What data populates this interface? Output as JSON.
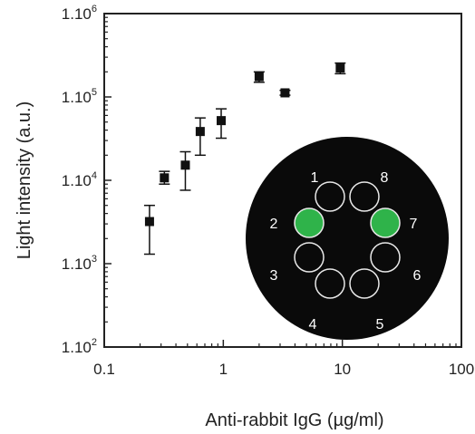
{
  "chart_data": {
    "type": "scatter",
    "xlabel": "Anti-rabbit IgG (µg/ml)",
    "ylabel": "Light intensity (a.u.)",
    "x_scale": "log",
    "y_scale": "log",
    "xlim": [
      0.1,
      100
    ],
    "ylim": [
      100,
      1000000
    ],
    "x_ticks": [
      {
        "value": 0.1,
        "label": "0.1"
      },
      {
        "value": 1,
        "label": "1"
      },
      {
        "value": 10,
        "label": "10"
      },
      {
        "value": 100,
        "label": "100"
      }
    ],
    "y_ticks": [
      {
        "value": 100,
        "base": "1.10",
        "exp": "2"
      },
      {
        "value": 1000,
        "base": "1.10",
        "exp": "3"
      },
      {
        "value": 10000,
        "base": "1.10",
        "exp": "4"
      },
      {
        "value": 100000,
        "base": "1.10",
        "exp": "5"
      },
      {
        "value": 1000000,
        "base": "1.10",
        "exp": "6"
      }
    ],
    "points": [
      {
        "x": 0.24,
        "y": 3200,
        "err_low": 1300,
        "err_high": 5000
      },
      {
        "x": 0.32,
        "y": 10700,
        "err_low": 9000,
        "err_high": 12800
      },
      {
        "x": 0.48,
        "y": 15200,
        "err_low": 7600,
        "err_high": 22000
      },
      {
        "x": 0.64,
        "y": 38500,
        "err_low": 20000,
        "err_high": 56000
      },
      {
        "x": 0.96,
        "y": 52000,
        "err_low": 32000,
        "err_high": 72000
      },
      {
        "x": 2.0,
        "y": 175000,
        "err_low": 150000,
        "err_high": 200000
      },
      {
        "x": 3.3,
        "y": 112000,
        "err_low": 105000,
        "err_high": 120000
      },
      {
        "x": 9.6,
        "y": 222000,
        "err_low": 190000,
        "err_high": 255000
      }
    ],
    "grid": false,
    "marker_color": "#111111"
  },
  "inset": {
    "background": "#0a0a0a",
    "well_outline": "#e8e8e8",
    "highlight_color": "#2fb34a",
    "wells": [
      {
        "label": "1",
        "highlighted": false
      },
      {
        "label": "2",
        "highlighted": true
      },
      {
        "label": "3",
        "highlighted": false
      },
      {
        "label": "4",
        "highlighted": false
      },
      {
        "label": "5",
        "highlighted": false
      },
      {
        "label": "6",
        "highlighted": false
      },
      {
        "label": "7",
        "highlighted": true
      },
      {
        "label": "8",
        "highlighted": false
      }
    ]
  }
}
